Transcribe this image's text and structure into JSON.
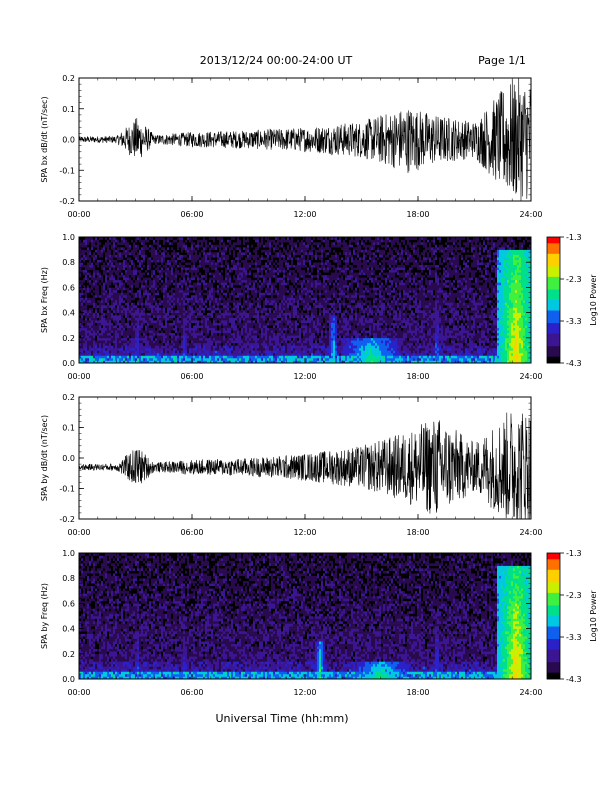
{
  "header": {
    "date_range": "2013/12/24  00:00-24:00 UT",
    "page": "Page 1/1"
  },
  "footer": {
    "xlabel": "Universal Time (hh:mm)"
  },
  "colors": {
    "background": "#ffffff",
    "trace": "#000000",
    "colormap": [
      "#000000",
      "#2a0a4e",
      "#3b1592",
      "#2a22c8",
      "#1060f0",
      "#00c8e0",
      "#00e08a",
      "#40f040",
      "#c8f000",
      "#ffd000",
      "#ff7000",
      "#ff0000"
    ]
  },
  "chart_data": [
    {
      "type": "line",
      "ylabel": "SPA bx dB/dt (nT/sec)",
      "x_ticks": [
        "00:00",
        "06:00",
        "12:00",
        "18:00",
        "24:00"
      ],
      "y_ticks": [
        "0.2",
        "0.1",
        "0.0",
        "-0.1",
        "-0.2"
      ],
      "xlim": [
        0,
        24
      ],
      "ylim": [
        -0.2,
        0.2
      ],
      "baseline": 0.0,
      "envelope": [
        {
          "hour": 0,
          "amp": 0.01
        },
        {
          "hour": 2,
          "amp": 0.012
        },
        {
          "hour": 3.1,
          "amp": 0.075
        },
        {
          "hour": 4,
          "amp": 0.015
        },
        {
          "hour": 6,
          "amp": 0.025
        },
        {
          "hour": 9,
          "amp": 0.03
        },
        {
          "hour": 12,
          "amp": 0.04
        },
        {
          "hour": 15,
          "amp": 0.06
        },
        {
          "hour": 17.5,
          "amp": 0.11
        },
        {
          "hour": 19,
          "amp": 0.08
        },
        {
          "hour": 21,
          "amp": 0.06
        },
        {
          "hour": 23,
          "amp": 0.2
        },
        {
          "hour": 24,
          "amp": 0.2
        }
      ]
    },
    {
      "type": "heatmap",
      "ylabel": "SPA bx Freq (Hz)",
      "x_ticks": [
        "00:00",
        "06:00",
        "12:00",
        "18:00",
        "24:00"
      ],
      "y_ticks": [
        "1.0",
        "0.8",
        "0.6",
        "0.4",
        "0.2",
        "0.0"
      ],
      "xlim": [
        0,
        24
      ],
      "ylim": [
        0,
        1.0
      ],
      "colorbar": {
        "label": "Log10 Power",
        "ticks": [
          "-1.3",
          "-2.3",
          "-3.3",
          "-4.3"
        ],
        "range": [
          -4.3,
          -1.3
        ]
      },
      "features": [
        {
          "hour": 3.1,
          "fmax": 0.45,
          "level": -3.3
        },
        {
          "hour": 5.6,
          "fmax": 0.4,
          "level": -3.3
        },
        {
          "hour": 13.5,
          "fmax": 0.38,
          "level": -2.8
        },
        {
          "hour": 15.5,
          "fmax": 0.2,
          "level": -2.6
        },
        {
          "hour": 19.0,
          "fmax": 0.5,
          "level": -3.2
        },
        {
          "hour": 23.2,
          "fmax": 0.9,
          "level": -2.0
        }
      ]
    },
    {
      "type": "line",
      "ylabel": "SPA by dB/dt (nT/sec)",
      "x_ticks": [
        "00:00",
        "06:00",
        "12:00",
        "18:00",
        "24:00"
      ],
      "y_ticks": [
        "0.2",
        "0.1",
        "0.0",
        "-0.1",
        "-0.2"
      ],
      "xlim": [
        0,
        24
      ],
      "ylim": [
        -0.2,
        0.2
      ],
      "baseline": -0.03,
      "envelope": [
        {
          "hour": 0,
          "amp": 0.01
        },
        {
          "hour": 2,
          "amp": 0.012
        },
        {
          "hour": 3.1,
          "amp": 0.07
        },
        {
          "hour": 4,
          "amp": 0.015
        },
        {
          "hour": 6,
          "amp": 0.025
        },
        {
          "hour": 9,
          "amp": 0.03
        },
        {
          "hour": 12,
          "amp": 0.045
        },
        {
          "hour": 15,
          "amp": 0.07
        },
        {
          "hour": 17.5,
          "amp": 0.12
        },
        {
          "hour": 19,
          "amp": 0.17
        },
        {
          "hour": 21,
          "amp": 0.08
        },
        {
          "hour": 23,
          "amp": 0.2
        },
        {
          "hour": 24,
          "amp": 0.2
        }
      ]
    },
    {
      "type": "heatmap",
      "ylabel": "SPA by Freq (Hz)",
      "x_ticks": [
        "00:00",
        "06:00",
        "12:00",
        "18:00",
        "24:00"
      ],
      "y_ticks": [
        "1.0",
        "0.8",
        "0.6",
        "0.4",
        "0.2",
        "0.0"
      ],
      "xlim": [
        0,
        24
      ],
      "ylim": [
        0,
        1.0
      ],
      "colorbar": {
        "label": "Log10 Power",
        "ticks": [
          "-1.3",
          "-2.3",
          "-3.3",
          "-4.3"
        ],
        "range": [
          -4.3,
          -1.3
        ]
      },
      "features": [
        {
          "hour": 3.1,
          "fmax": 0.4,
          "level": -3.3
        },
        {
          "hour": 5.6,
          "fmax": 0.35,
          "level": -3.3
        },
        {
          "hour": 12.8,
          "fmax": 0.3,
          "level": -2.6
        },
        {
          "hour": 16.0,
          "fmax": 0.15,
          "level": -2.6
        },
        {
          "hour": 19.0,
          "fmax": 0.45,
          "level": -3.2
        },
        {
          "hour": 23.2,
          "fmax": 0.9,
          "level": -2.0
        }
      ]
    }
  ]
}
